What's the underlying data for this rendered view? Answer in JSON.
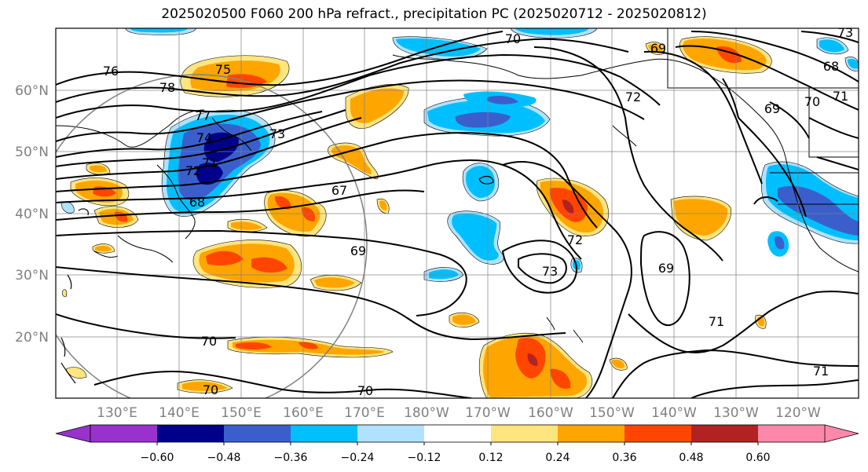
{
  "title": "2025020500 F060 200 hPa refract., precipitation PC (2025020712 - 2025020812)",
  "map": {
    "lat_labels": [
      "60°N",
      "50°N",
      "40°N",
      "30°N",
      "20°N"
    ],
    "lon_labels": [
      "130°E",
      "140°E",
      "150°E",
      "160°E",
      "170°E",
      "180°W",
      "170°W",
      "160°W",
      "150°W",
      "140°W",
      "130°W",
      "120°W"
    ],
    "contour_labels": [
      "76",
      "75",
      "78",
      "77",
      "74",
      "73",
      "71",
      "72",
      "68",
      "67",
      "69",
      "70",
      "70",
      "70",
      "70",
      "69",
      "72",
      "73",
      "69",
      "71",
      "71",
      "70",
      "71",
      "69",
      "68",
      "73",
      "72"
    ]
  },
  "colorbar": {
    "ticks": [
      "−0.60",
      "−0.48",
      "−0.36",
      "−0.24",
      "−0.12",
      "0.12",
      "0.24",
      "0.36",
      "0.48",
      "0.60"
    ],
    "colors": [
      "#9932cc",
      "#00008b",
      "#3a5fcd",
      "#00bfff",
      "#b0e2ff",
      "#ffffff",
      "#ffe57f",
      "#ffa500",
      "#ff4500",
      "#b22222",
      "#ff88aa"
    ]
  },
  "shading_colors": {
    "pos_light": "#ffe57f",
    "pos_mid": "#ffa500",
    "pos_strong": "#ff4500",
    "pos_max": "#b22222",
    "neg_light": "#b0e2ff",
    "neg_mid": "#00bfff",
    "neg_strong": "#3a5fcd",
    "neg_max": "#00008b"
  }
}
